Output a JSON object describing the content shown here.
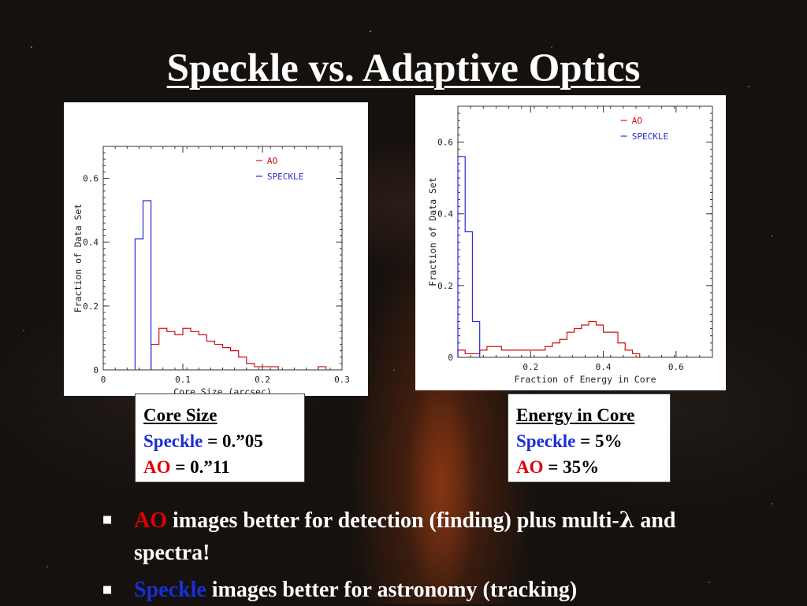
{
  "title": "Speckle vs. Adaptive Optics",
  "colors": {
    "ao": "#d01010",
    "speckle": "#2a2adc",
    "ao_text": "#e00000",
    "speckle_text": "#1a2fd6"
  },
  "chart_data": [
    {
      "type": "histogram",
      "title": "",
      "xlabel": "Core Size (arcsec)",
      "ylabel": "Fraction of Data Set",
      "xlim": [
        0,
        0.3
      ],
      "ylim": [
        0,
        0.7
      ],
      "xticks": [
        0,
        0.1,
        0.2,
        0.3
      ],
      "xtick_labels": [
        "0",
        "0.1",
        "0.2",
        "0.3"
      ],
      "yticks": [
        0,
        0.2,
        0.4,
        0.6
      ],
      "ytick_labels": [
        "0",
        "0.2",
        "0.4",
        "0.6"
      ],
      "grid": false,
      "legend": "top-right",
      "bin_width": 0.01,
      "series": [
        {
          "name": "AO",
          "bin_starts": [
            0.06,
            0.07,
            0.08,
            0.09,
            0.1,
            0.11,
            0.12,
            0.13,
            0.14,
            0.15,
            0.16,
            0.17,
            0.18,
            0.19,
            0.2,
            0.21,
            0.27
          ],
          "values": [
            0.08,
            0.13,
            0.12,
            0.11,
            0.13,
            0.12,
            0.11,
            0.09,
            0.08,
            0.07,
            0.06,
            0.04,
            0.02,
            0.01,
            0.01,
            0.01,
            0.01
          ]
        },
        {
          "name": "SPECKLE",
          "bin_starts": [
            0.04,
            0.05
          ],
          "values": [
            0.41,
            0.53
          ]
        }
      ]
    },
    {
      "type": "histogram",
      "title": "",
      "xlabel": "Fraction of Energy in Core",
      "ylabel": "Fraction of Data Set",
      "xlim": [
        0,
        0.7
      ],
      "ylim": [
        0,
        0.7
      ],
      "xticks": [
        0.2,
        0.4,
        0.6
      ],
      "xtick_labels": [
        "0.2",
        "0.4",
        "0.6"
      ],
      "yticks": [
        0,
        0.2,
        0.4,
        0.6
      ],
      "ytick_labels": [
        "0",
        "0.2",
        "0.4",
        "0.6"
      ],
      "grid": false,
      "legend": "top-right",
      "bin_width": 0.02,
      "series": [
        {
          "name": "AO",
          "bin_starts": [
            0.0,
            0.02,
            0.04,
            0.06,
            0.08,
            0.1,
            0.12,
            0.14,
            0.16,
            0.18,
            0.2,
            0.22,
            0.24,
            0.26,
            0.28,
            0.3,
            0.32,
            0.34,
            0.36,
            0.38,
            0.4,
            0.42,
            0.44,
            0.46,
            0.48
          ],
          "values": [
            0.02,
            0.01,
            0.01,
            0.02,
            0.03,
            0.03,
            0.02,
            0.02,
            0.02,
            0.02,
            0.02,
            0.02,
            0.03,
            0.04,
            0.05,
            0.07,
            0.08,
            0.09,
            0.1,
            0.09,
            0.07,
            0.07,
            0.04,
            0.02,
            0.01
          ]
        },
        {
          "name": "SPECKLE",
          "bin_starts": [
            0.0,
            0.02,
            0.04
          ],
          "values": [
            0.56,
            0.35,
            0.1
          ]
        }
      ]
    }
  ],
  "callout1": {
    "heading": "Core Size",
    "speckle_label": "Speckle",
    "speckle_value": " = 0.”05",
    "ao_label": "AO",
    "ao_value": " = 0.”11"
  },
  "callout2": {
    "heading": "Energy in Core",
    "speckle_label": "Speckle",
    "speckle_value": " = 5%",
    "ao_label": "AO",
    "ao_value": " = 35%"
  },
  "bullets": [
    {
      "marker": "■",
      "highlight": "AO",
      "text_before_lambda": " images better for detection (finding)  plus multi-",
      "lambda": "λ",
      "text_after_lambda": " and spectra!"
    },
    {
      "marker": "■",
      "highlight": "Speckle",
      "text": " images better for astronomy (tracking)"
    }
  ]
}
